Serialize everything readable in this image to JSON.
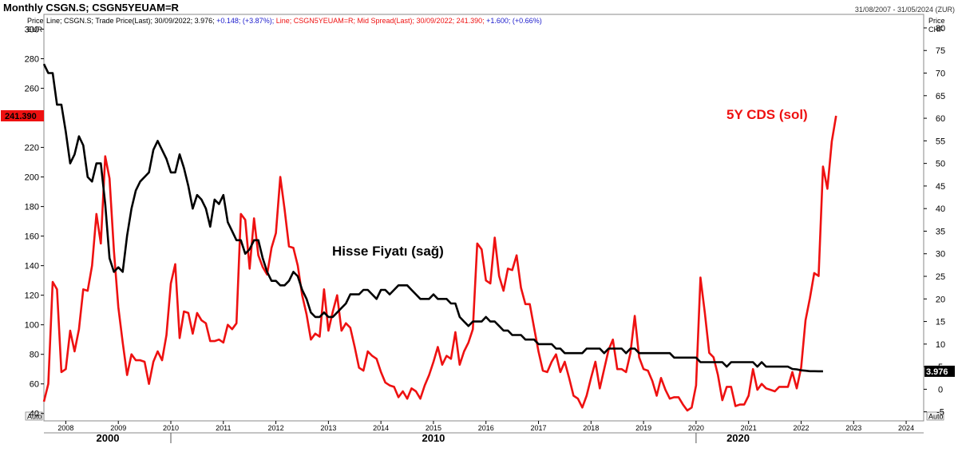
{
  "header": {
    "title": "Monthly CSGN.S; CSGN5YEUAM=R",
    "date_range": "31/08/2007 - 31/05/2024 (ZUR)"
  },
  "legend": {
    "line1": "Line; CSGN.S; Trade Price(Last); 30/09/2022; 3.976;",
    "line1_change": "+0.148; (+3.87%);",
    "line2": "Line; CSGN5YEUAM=R; Mid Spread(Last); 30/09/2022; 241.390;",
    "line2_change": "+1.600; (+0.66%)"
  },
  "axes": {
    "left_title": "Price",
    "left_unit": "EUR",
    "right_title": "Price",
    "right_unit": "CHF",
    "left_ticks": [
      "40",
      "60",
      "80",
      "100",
      "120",
      "140",
      "160",
      "180",
      "200",
      "220",
      "240",
      "260",
      "280",
      "300"
    ],
    "right_ticks": [
      "-5",
      "0",
      "5",
      "10",
      "15",
      "20",
      "25",
      "30",
      "35",
      "40",
      "45",
      "50",
      "55",
      "60",
      "65",
      "70",
      "75",
      "80"
    ],
    "left_auto": "Auto",
    "right_auto": "Auto",
    "year_labels": [
      "2008",
      "2009",
      "2010",
      "2011",
      "2012",
      "2013",
      "2014",
      "2015",
      "2016",
      "2017",
      "2018",
      "2019",
      "2020",
      "2021",
      "2022",
      "2023",
      "2024"
    ],
    "decade_labels": [
      "2000",
      "2010",
      "2020"
    ]
  },
  "badges": {
    "cds_last": "241.390",
    "stock_last": "3.976"
  },
  "annotations": {
    "cds": "5Y CDS (sol)",
    "stock": "Hisse Fiyatı (sağ)"
  },
  "colors": {
    "cds": "#ee1111",
    "stock": "#000000",
    "badge_cds": "#ee1111",
    "badge_stock": "#000000",
    "positive_change": "#1a1acc"
  },
  "chart_data": {
    "type": "line",
    "x_start": "2007-08",
    "x_step": "1 month",
    "series": [
      {
        "name": "CSGN5YEUAM=R",
        "axis": "left",
        "unit": "EUR",
        "values": [
          48,
          60,
          129,
          124,
          68,
          70,
          96,
          82,
          97,
          124,
          123,
          140,
          175,
          155,
          214,
          199,
          150,
          112,
          88,
          66,
          80,
          76,
          76,
          75,
          60,
          75,
          82,
          76,
          93,
          128,
          141,
          91,
          109,
          108,
          94,
          108,
          103,
          101,
          89,
          89,
          90,
          88,
          100,
          97,
          101,
          175,
          171,
          138,
          172,
          147,
          139,
          134,
          152,
          162,
          200,
          178,
          153,
          152,
          140,
          120,
          107,
          90,
          94,
          92,
          124,
          96,
          109,
          120,
          96,
          101,
          98,
          85,
          71,
          69,
          82,
          79,
          77,
          68,
          61,
          59,
          58,
          51,
          55,
          50,
          57,
          55,
          50,
          59,
          66,
          75,
          85,
          73,
          79,
          77,
          95,
          73,
          82,
          88,
          97,
          155,
          151,
          130,
          128,
          159,
          133,
          123,
          138,
          137,
          147,
          125,
          114,
          114,
          98,
          82,
          69,
          68,
          75,
          80,
          68,
          75,
          64,
          52,
          50,
          44,
          52,
          64,
          75,
          57,
          70,
          83,
          90,
          70,
          70,
          68,
          81,
          106,
          78,
          70,
          69,
          62,
          52,
          64,
          56,
          50,
          51,
          51,
          46,
          42,
          44,
          59,
          132,
          108,
          81,
          78,
          66,
          49,
          58,
          58,
          45,
          46,
          46,
          52,
          70,
          56,
          60,
          57,
          56,
          55,
          58,
          58,
          58,
          68,
          57,
          71,
          103,
          118,
          135,
          133,
          207,
          192,
          224,
          241.39
        ]
      },
      {
        "name": "CSGN.S",
        "axis": "right",
        "unit": "CHF",
        "values": [
          72,
          70,
          70,
          63,
          63,
          57,
          50,
          52,
          56,
          54,
          47,
          46,
          50,
          50,
          41,
          29,
          26,
          27,
          26,
          34,
          40,
          44,
          46,
          47,
          48,
          53,
          55,
          53,
          51,
          48,
          48,
          52,
          49,
          45,
          40,
          43,
          42,
          40,
          36,
          42,
          41,
          43,
          37,
          35,
          33,
          33,
          30,
          31,
          33,
          33,
          29,
          26,
          24,
          24,
          23,
          23,
          24,
          26,
          25,
          22,
          20,
          17,
          16,
          16,
          17,
          16,
          16,
          17,
          18,
          19,
          21,
          21,
          21,
          22,
          22,
          21,
          20,
          22,
          22,
          21,
          22,
          23,
          23,
          23,
          22,
          21,
          20,
          20,
          20,
          21,
          20,
          20,
          20,
          19,
          19,
          16,
          15,
          14,
          15,
          15,
          15,
          16,
          15,
          15,
          14,
          13,
          13,
          12,
          12,
          12,
          11,
          11,
          11,
          10,
          10,
          10,
          10,
          9,
          9,
          8,
          8,
          8,
          8,
          8,
          9,
          9,
          9,
          9,
          8,
          9,
          9,
          9,
          9,
          8,
          9,
          9,
          8,
          8,
          8,
          8,
          8,
          8,
          8,
          8,
          7,
          7,
          7,
          7,
          7,
          7,
          6,
          6,
          6,
          6,
          6,
          6,
          5,
          6,
          6,
          6,
          6,
          6,
          6,
          5,
          6,
          5,
          5,
          5,
          5,
          5,
          5,
          4.5,
          4.4,
          4.2,
          4.1,
          4,
          4,
          3.98,
          3.976
        ]
      }
    ],
    "left_axis_range": [
      35,
      310
    ],
    "right_axis_range": [
      -7,
      83
    ],
    "x_range": [
      "2007-08",
      "2024-05"
    ],
    "legend_position": "top-left",
    "grid": false
  }
}
